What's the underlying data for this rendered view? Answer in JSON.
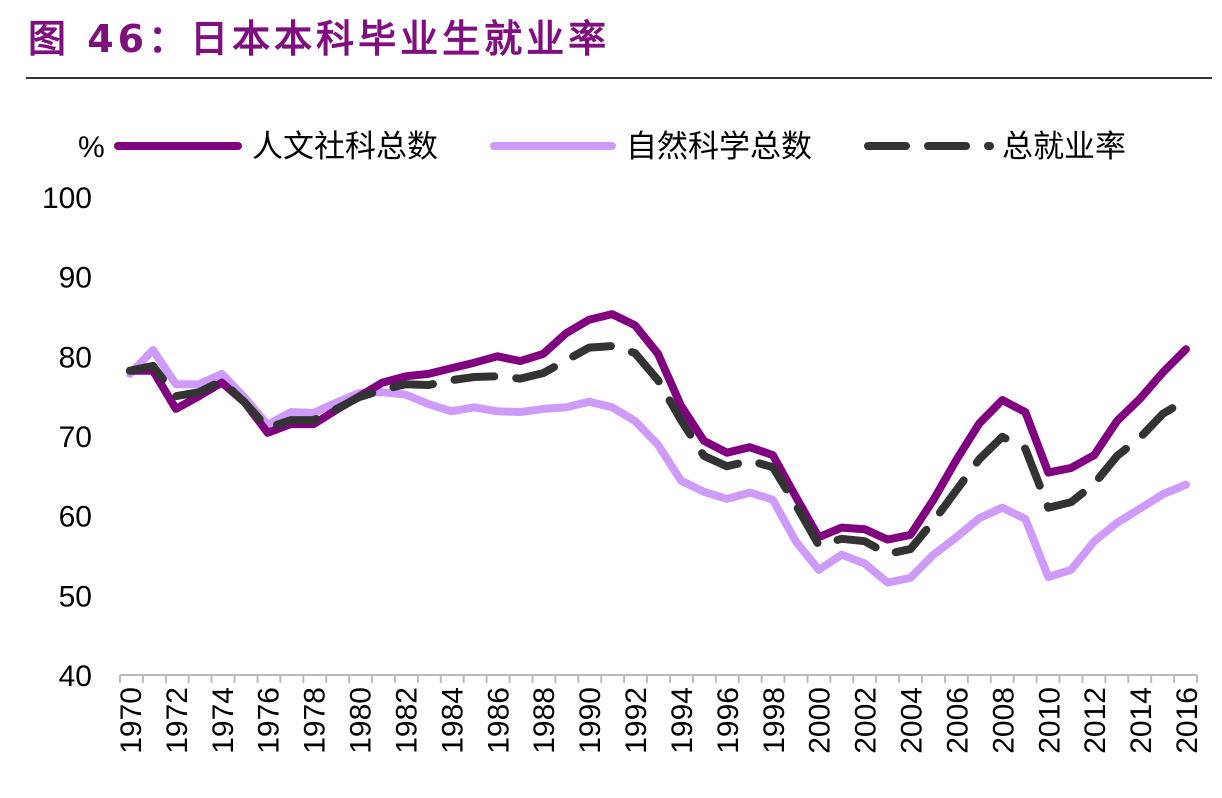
{
  "title": "图 46：日本本科毕业生就业率",
  "chart_data": {
    "type": "line",
    "title": "图 46：日本本科毕业生就业率",
    "ylabel": "%",
    "xlabel": "",
    "ylim": [
      40,
      100
    ],
    "yticks": [
      "40",
      "50",
      "60",
      "70",
      "80",
      "90",
      "100"
    ],
    "xticks": [
      "1970",
      "1972",
      "1974",
      "1976",
      "1978",
      "1980",
      "1982",
      "1984",
      "1986",
      "1988",
      "1990",
      "1992",
      "1994",
      "1996",
      "1998",
      "2000",
      "2002",
      "2004",
      "2006",
      "2008",
      "2010",
      "2012",
      "2014",
      "2016"
    ],
    "legend_position": "top",
    "grid": false,
    "x": [
      1970,
      1971,
      1972,
      1973,
      1974,
      1975,
      1976,
      1977,
      1978,
      1979,
      1980,
      1981,
      1982,
      1983,
      1984,
      1985,
      1986,
      1987,
      1988,
      1989,
      1990,
      1991,
      1992,
      1993,
      1994,
      1995,
      1996,
      1997,
      1998,
      1999,
      2000,
      2001,
      2002,
      2003,
      2004,
      2005,
      2006,
      2007,
      2008,
      2009,
      2010,
      2011,
      2012,
      2013,
      2014,
      2015,
      2016
    ],
    "series": [
      {
        "name": "人文社科总数",
        "color": "#800080",
        "style": "solid",
        "values": [
          78.2,
          78.2,
          73.4,
          75.0,
          76.7,
          74.2,
          70.4,
          71.5,
          71.5,
          73.3,
          75.0,
          76.7,
          77.5,
          77.8,
          78.5,
          79.2,
          80.0,
          79.4,
          80.3,
          82.9,
          84.6,
          85.3,
          83.9,
          80.3,
          73.8,
          69.4,
          67.9,
          68.6,
          67.6,
          62.4,
          57.3,
          58.5,
          58.3,
          57.0,
          57.6,
          62.0,
          67.0,
          71.6,
          74.5,
          73.0,
          65.4,
          66.0,
          67.6,
          71.9,
          74.7,
          78.0,
          80.9
        ]
      },
      {
        "name": "自然科学总数",
        "color": "#cf9bfa",
        "style": "solid",
        "values": [
          77.8,
          80.8,
          76.5,
          76.5,
          77.8,
          74.8,
          71.4,
          73.0,
          72.9,
          74.2,
          75.4,
          75.5,
          75.2,
          74.0,
          73.1,
          73.6,
          73.1,
          73.0,
          73.4,
          73.6,
          74.3,
          73.6,
          71.9,
          68.9,
          64.4,
          63.0,
          62.1,
          62.9,
          62.0,
          56.8,
          53.2,
          55.1,
          54.0,
          51.6,
          52.2,
          55.1,
          57.3,
          59.7,
          61.0,
          59.6,
          52.3,
          53.2,
          56.8,
          59.1,
          60.9,
          62.7,
          63.9
        ]
      },
      {
        "name": "总就业率",
        "color": "#333333",
        "style": "dashed",
        "values": [
          78.2,
          78.8,
          75.0,
          75.5,
          76.9,
          74.2,
          71.0,
          72.0,
          72.0,
          73.4,
          74.9,
          75.8,
          76.5,
          76.4,
          77.0,
          77.4,
          77.5,
          77.2,
          77.9,
          79.5,
          81.1,
          81.3,
          80.4,
          77.0,
          72.0,
          67.5,
          66.2,
          66.9,
          66.1,
          61.4,
          56.3,
          57.1,
          56.8,
          55.2,
          55.8,
          59.3,
          63.2,
          67.1,
          69.9,
          68.4,
          61.0,
          61.7,
          64.0,
          67.5,
          69.8,
          72.8,
          74.5
        ]
      }
    ]
  }
}
